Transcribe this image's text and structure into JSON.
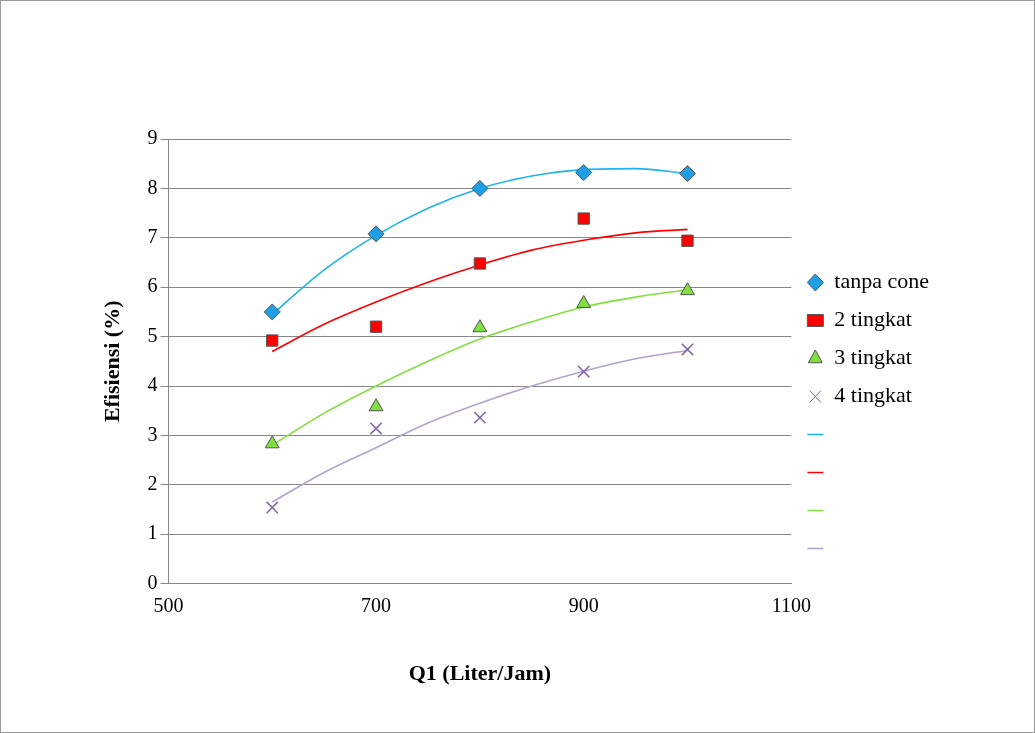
{
  "chart_data": {
    "type": "scatter",
    "xlabel": "Q1 (Liter/Jam)",
    "ylabel": "Efisiensi (%)",
    "xlim": [
      500,
      1100
    ],
    "xticks": [
      500,
      700,
      900,
      1100
    ],
    "ylim": [
      0,
      9
    ],
    "yticks": [
      0,
      1,
      2,
      3,
      4,
      5,
      6,
      7,
      8,
      9
    ],
    "grid": "y",
    "legend": "right",
    "series": [
      {
        "name": "tanpa cone",
        "marker": "diamond",
        "color": "#1f9ee6",
        "x": [
          600,
          700,
          800,
          900,
          1000
        ],
        "values": [
          5.5,
          7.08,
          8.0,
          8.32,
          8.3
        ]
      },
      {
        "name": "2 tingkat",
        "marker": "square",
        "color": "#ff0000",
        "x": [
          600,
          700,
          800,
          900,
          1000
        ],
        "values": [
          4.92,
          5.2,
          6.48,
          7.39,
          6.94
        ]
      },
      {
        "name": "3 tingkat",
        "marker": "triangle",
        "color": "#80e040",
        "x": [
          600,
          700,
          800,
          900,
          1000
        ],
        "values": [
          2.83,
          3.58,
          5.18,
          5.67,
          5.93
        ]
      },
      {
        "name": "4 tingkat",
        "marker": "cross",
        "color": "#8064a2",
        "x": [
          600,
          700,
          800,
          900,
          1000
        ],
        "values": [
          1.54,
          3.14,
          3.36,
          4.29,
          4.74
        ]
      },
      {
        "type": "line",
        "marker": "none",
        "color": "#1fb4ea",
        "x": [
          600,
          650,
          700,
          750,
          800,
          850,
          900,
          950,
          1000
        ],
        "values": [
          5.45,
          6.35,
          7.05,
          7.6,
          8.0,
          8.25,
          8.38,
          8.4,
          8.3
        ]
      },
      {
        "type": "line",
        "marker": "none",
        "color": "#ff0000",
        "x": [
          600,
          650,
          700,
          750,
          800,
          850,
          900,
          950,
          1000
        ],
        "values": [
          4.7,
          5.25,
          5.7,
          6.1,
          6.45,
          6.75,
          6.95,
          7.1,
          7.17
        ]
      },
      {
        "type": "line",
        "marker": "none",
        "color": "#80e040",
        "x": [
          600,
          650,
          700,
          750,
          800,
          850,
          900,
          950,
          1000
        ],
        "values": [
          2.8,
          3.45,
          4.0,
          4.5,
          4.95,
          5.3,
          5.6,
          5.8,
          5.95
        ]
      },
      {
        "type": "line",
        "marker": "none",
        "color": "#b3a2cc",
        "x": [
          600,
          650,
          700,
          750,
          800,
          850,
          900,
          950,
          1000
        ],
        "values": [
          1.65,
          2.25,
          2.75,
          3.25,
          3.65,
          4.0,
          4.3,
          4.55,
          4.72
        ]
      }
    ]
  }
}
